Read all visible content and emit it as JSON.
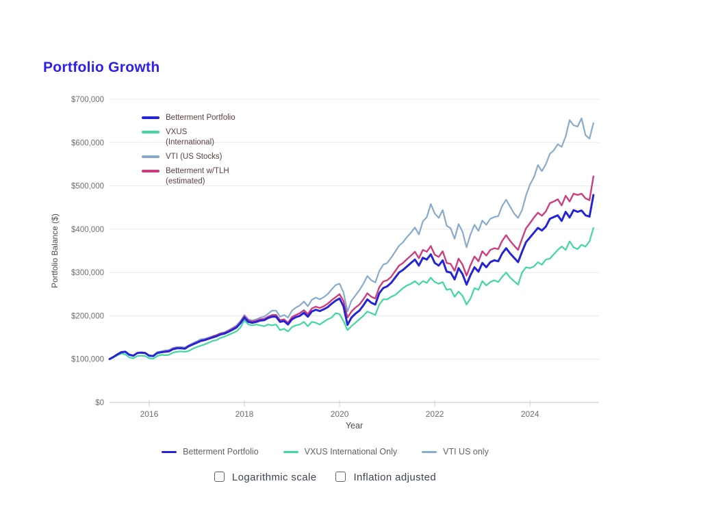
{
  "page": {
    "title": "Portfolio Growth",
    "title_color": "#2d20e8",
    "background": "#ffffff"
  },
  "chart_data": {
    "type": "line",
    "title": "Portfolio Growth",
    "xlabel": "Year",
    "ylabel": "Portfolio Balance ($)",
    "xlim": [
      2015.167,
      2025.45
    ],
    "ylim": [
      0,
      700000
    ],
    "grid": "horizontal-only",
    "legend_position": "top-left-inside and bottom-center",
    "frequency": "monthly",
    "start": {
      "year": 2015,
      "month": 3
    },
    "units_note": "series values in thousands of USD",
    "x_ticks": [
      {
        "value": 2016,
        "label": "2016"
      },
      {
        "value": 2018,
        "label": "2018"
      },
      {
        "value": 2020,
        "label": "2020"
      },
      {
        "value": 2022,
        "label": "2022"
      },
      {
        "value": 2024,
        "label": "2024"
      }
    ],
    "y_ticks": [
      {
        "value": 0,
        "label": "$0"
      },
      {
        "value": 100000,
        "label": "$100,000"
      },
      {
        "value": 200000,
        "label": "$200,000"
      },
      {
        "value": 300000,
        "label": "$300,000"
      },
      {
        "value": 400000,
        "label": "$400,000"
      },
      {
        "value": 500000,
        "label": "$500,000"
      },
      {
        "value": 600000,
        "label": "$600,000"
      },
      {
        "value": 700000,
        "label": "$700,000"
      }
    ],
    "draw_order": [
      "vti",
      "vxus",
      "tlh",
      "betterment"
    ],
    "series": [
      {
        "id": "betterment",
        "name": "Betterment Portfolio",
        "color": "#2424d6",
        "line_width": 3,
        "values_k": [
          100,
          105,
          111,
          116,
          117,
          110,
          108,
          114,
          115,
          114,
          108,
          107,
          114,
          116,
          117,
          118,
          123,
          125,
          125,
          124,
          130,
          134,
          138,
          142,
          144,
          147,
          150,
          153,
          157,
          159,
          163,
          168,
          173,
          183,
          196,
          186,
          184,
          186,
          189,
          190,
          195,
          198,
          198,
          186,
          188,
          180,
          192,
          197,
          200,
          207,
          198,
          210,
          214,
          211,
          215,
          220,
          228,
          235,
          240,
          222,
          179,
          196,
          205,
          212,
          224,
          238,
          230,
          226,
          252,
          264,
          268,
          276,
          288,
          300,
          306,
          314,
          322,
          330,
          316,
          334,
          330,
          342,
          322,
          316,
          328,
          302,
          300,
          284,
          310,
          296,
          272,
          294,
          312,
          302,
          322,
          312,
          324,
          328,
          326,
          344,
          356,
          344,
          334,
          324,
          348,
          370,
          381,
          392,
          403,
          397,
          406,
          424,
          428,
          432,
          419,
          440,
          427,
          444,
          440,
          443,
          432,
          429,
          479
        ]
      },
      {
        "id": "vxus",
        "name": "VXUS (International)",
        "color": "#41d7a1",
        "line_width": 2.2,
        "values_k": [
          100,
          104,
          109,
          113,
          111,
          104,
          102,
          107,
          108,
          107,
          102,
          101,
          107,
          110,
          109,
          110,
          115,
          117,
          118,
          117,
          119,
          124,
          128,
          131,
          134,
          138,
          142,
          144,
          149,
          152,
          156,
          160,
          164,
          173,
          190,
          180,
          178,
          180,
          178,
          176,
          180,
          178,
          180,
          167,
          170,
          164,
          174,
          178,
          180,
          186,
          176,
          186,
          184,
          180,
          186,
          192,
          196,
          206,
          204,
          188,
          167,
          176,
          184,
          192,
          200,
          210,
          206,
          202,
          226,
          238,
          238,
          244,
          248,
          256,
          264,
          270,
          274,
          280,
          272,
          280,
          276,
          288,
          278,
          274,
          278,
          260,
          262,
          244,
          256,
          246,
          226,
          240,
          264,
          260,
          280,
          270,
          278,
          282,
          278,
          290,
          300,
          288,
          280,
          272,
          300,
          312,
          310,
          314,
          324,
          318,
          330,
          332,
          342,
          352,
          360,
          352,
          372,
          358,
          354,
          364,
          360,
          372,
          403
        ]
      },
      {
        "id": "vti",
        "name": "VTI (US Stocks)",
        "color": "#88abcb",
        "line_width": 2.2,
        "values_k": [
          100,
          105,
          112,
          117,
          118,
          111,
          108,
          115,
          116,
          115,
          109,
          108,
          116,
          118,
          120,
          121,
          126,
          128,
          128,
          127,
          132,
          137,
          141,
          146,
          147,
          150,
          153,
          156,
          160,
          162,
          167,
          172,
          178,
          188,
          202,
          192,
          189,
          192,
          196,
          198,
          205,
          212,
          212,
          198,
          202,
          196,
          212,
          219,
          224,
          233,
          222,
          237,
          242,
          238,
          243,
          250,
          261,
          271,
          274,
          254,
          210,
          235,
          247,
          259,
          274,
          292,
          282,
          277,
          303,
          318,
          322,
          334,
          348,
          362,
          370,
          382,
          392,
          404,
          388,
          418,
          428,
          458,
          436,
          426,
          444,
          408,
          402,
          378,
          412,
          394,
          358,
          388,
          410,
          396,
          420,
          410,
          424,
          428,
          430,
          454,
          468,
          452,
          436,
          426,
          444,
          478,
          503,
          520,
          548,
          534,
          550,
          574,
          582,
          596,
          590,
          614,
          652,
          640,
          637,
          656,
          617,
          609,
          645
        ]
      },
      {
        "id": "tlh",
        "name": "Betterment w/TLH (estimated)",
        "color": "#cd3c7d",
        "line_width": 2.4,
        "values_k": [
          100,
          105,
          111,
          116,
          117,
          110,
          108,
          114,
          115,
          114,
          108,
          107,
          114,
          116,
          118,
          119,
          124,
          126,
          126,
          125,
          131,
          135,
          139,
          143,
          145,
          148,
          152,
          155,
          159,
          161,
          165,
          170,
          175,
          185,
          199,
          189,
          187,
          189,
          192,
          193,
          198,
          202,
          202,
          190,
          192,
          184,
          197,
          202,
          206,
          213,
          204,
          217,
          221,
          218,
          222,
          228,
          236,
          243,
          250,
          234,
          196,
          210,
          219,
          226,
          238,
          252,
          244,
          240,
          266,
          279,
          282,
          290,
          303,
          316,
          322,
          331,
          339,
          348,
          333,
          352,
          348,
          361,
          341,
          336,
          349,
          322,
          320,
          304,
          332,
          318,
          293,
          317,
          337,
          326,
          349,
          339,
          352,
          356,
          354,
          373,
          386,
          373,
          362,
          352,
          378,
          402,
          414,
          427,
          438,
          431,
          441,
          460,
          464,
          469,
          455,
          477,
          464,
          482,
          479,
          482,
          471,
          467,
          522
        ]
      }
    ]
  },
  "top_legend": {
    "items": [
      {
        "label": "Betterment Portfolio",
        "color": "#2424d6"
      },
      {
        "label": "VXUS (International)",
        "color": "#41d7a1"
      },
      {
        "label": "VTI (US Stocks)",
        "color": "#88abcb"
      },
      {
        "label": "Betterment w/TLH (estimated)",
        "color": "#cd3c7d"
      }
    ]
  },
  "bottom_legend": {
    "items": [
      {
        "label": "Betterment Portfolio",
        "color": "#2424d6"
      },
      {
        "label": "VXUS International Only",
        "color": "#41d7a1"
      },
      {
        "label": "VTI US only",
        "color": "#88abcb"
      }
    ]
  },
  "controls": {
    "checkboxes": [
      {
        "label": "Logarithmic scale",
        "checked": false
      },
      {
        "label": "Inflation adjusted",
        "checked": false
      }
    ]
  },
  "colors": {
    "grid_line": "#e8e8e8",
    "axis_line": "#c6c6c6",
    "tick_mark": "#c3cede",
    "tick_label": "#6e6e6e",
    "axis_title": "#4a4a4a",
    "top_legend_text": "#5a4040",
    "bottom_legend_text": "#5f6368",
    "checkbox_label_text": "#3c4250"
  }
}
